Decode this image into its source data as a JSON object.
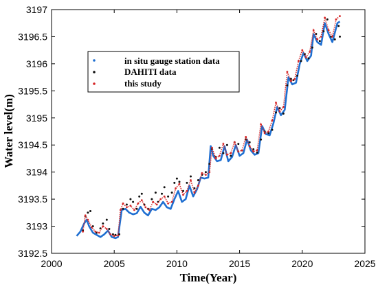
{
  "chart_data": {
    "type": "line",
    "xlabel": "Time(Year)",
    "ylabel": "Water level(m)",
    "xlim": [
      2000,
      2025
    ],
    "ylim": [
      3192.5,
      3197
    ],
    "xticks": [
      2000,
      2005,
      2010,
      2015,
      2020,
      2025
    ],
    "yticks": [
      3192.5,
      3193,
      3193.5,
      3194,
      3194.5,
      3195,
      3195.5,
      3196,
      3196.5,
      3197
    ],
    "xtick_labels": [
      "2000",
      "2005",
      "2010",
      "2015",
      "2020",
      "2025"
    ],
    "ytick_labels": [
      "3192.5",
      "3193",
      "3193.5",
      "3194",
      "3194.5",
      "3195",
      "3195.5",
      "3196",
      "3196.5",
      "3197"
    ],
    "grid": false,
    "legend_position": "upper-left",
    "series": [
      {
        "name": "in situ gauge station data",
        "color": "#1f6fd1",
        "style": "line",
        "points": [
          [
            2002.0,
            3192.82
          ],
          [
            2002.3,
            3192.9
          ],
          [
            2002.6,
            3193.05
          ],
          [
            2002.8,
            3193.12
          ],
          [
            2003.0,
            3193.0
          ],
          [
            2003.3,
            3192.88
          ],
          [
            2003.6,
            3192.84
          ],
          [
            2003.9,
            3192.8
          ],
          [
            2004.2,
            3192.85
          ],
          [
            2004.5,
            3192.92
          ],
          [
            2004.8,
            3192.8
          ],
          [
            2005.1,
            3192.78
          ],
          [
            2005.3,
            3192.8
          ],
          [
            2005.6,
            3193.3
          ],
          [
            2005.9,
            3193.32
          ],
          [
            2006.2,
            3193.25
          ],
          [
            2006.5,
            3193.22
          ],
          [
            2006.8,
            3193.24
          ],
          [
            2007.1,
            3193.36
          ],
          [
            2007.4,
            3193.25
          ],
          [
            2007.7,
            3193.2
          ],
          [
            2008.0,
            3193.32
          ],
          [
            2008.3,
            3193.3
          ],
          [
            2008.6,
            3193.35
          ],
          [
            2008.9,
            3193.45
          ],
          [
            2009.2,
            3193.35
          ],
          [
            2009.5,
            3193.32
          ],
          [
            2009.8,
            3193.5
          ],
          [
            2010.1,
            3193.65
          ],
          [
            2010.4,
            3193.45
          ],
          [
            2010.7,
            3193.5
          ],
          [
            2011.0,
            3193.75
          ],
          [
            2011.3,
            3193.55
          ],
          [
            2011.6,
            3193.68
          ],
          [
            2011.9,
            3193.9
          ],
          [
            2012.2,
            3193.88
          ],
          [
            2012.5,
            3193.9
          ],
          [
            2012.7,
            3194.48
          ],
          [
            2012.9,
            3194.3
          ],
          [
            2013.2,
            3194.2
          ],
          [
            2013.5,
            3194.22
          ],
          [
            2013.8,
            3194.48
          ],
          [
            2014.1,
            3194.2
          ],
          [
            2014.4,
            3194.28
          ],
          [
            2014.7,
            3194.5
          ],
          [
            2015.0,
            3194.3
          ],
          [
            2015.3,
            3194.35
          ],
          [
            2015.6,
            3194.6
          ],
          [
            2015.9,
            3194.4
          ],
          [
            2016.2,
            3194.32
          ],
          [
            2016.5,
            3194.35
          ],
          [
            2016.8,
            3194.85
          ],
          [
            2017.1,
            3194.7
          ],
          [
            2017.4,
            3194.68
          ],
          [
            2017.7,
            3194.9
          ],
          [
            2018.0,
            3195.2
          ],
          [
            2018.3,
            3195.05
          ],
          [
            2018.6,
            3195.15
          ],
          [
            2018.9,
            3195.75
          ],
          [
            2019.2,
            3195.62
          ],
          [
            2019.5,
            3195.65
          ],
          [
            2019.8,
            3196.0
          ],
          [
            2020.1,
            3196.2
          ],
          [
            2020.4,
            3196.05
          ],
          [
            2020.7,
            3196.15
          ],
          [
            2020.9,
            3196.55
          ],
          [
            2021.2,
            3196.4
          ],
          [
            2021.5,
            3196.35
          ],
          [
            2021.8,
            3196.75
          ],
          [
            2022.1,
            3196.55
          ],
          [
            2022.4,
            3196.4
          ],
          [
            2022.8,
            3196.75
          ],
          [
            2023.0,
            3196.78
          ]
        ]
      },
      {
        "name": "DAHITI data",
        "color": "#111111",
        "style": "dots",
        "points": [
          [
            2002.5,
            3192.92
          ],
          [
            2002.7,
            3193.18
          ],
          [
            2002.9,
            3193.25
          ],
          [
            2003.1,
            3193.28
          ],
          [
            2003.3,
            3193.0
          ],
          [
            2003.6,
            3192.88
          ],
          [
            2003.9,
            3192.96
          ],
          [
            2004.1,
            3193.05
          ],
          [
            2004.4,
            3193.12
          ],
          [
            2004.6,
            3192.95
          ],
          [
            2004.9,
            3192.85
          ],
          [
            2005.1,
            3192.84
          ],
          [
            2005.4,
            3192.85
          ],
          [
            2005.7,
            3193.32
          ],
          [
            2006.0,
            3193.4
          ],
          [
            2006.3,
            3193.5
          ],
          [
            2006.5,
            3193.45
          ],
          [
            2006.8,
            3193.32
          ],
          [
            2007.0,
            3193.55
          ],
          [
            2007.2,
            3193.6
          ],
          [
            2007.4,
            3193.4
          ],
          [
            2007.7,
            3193.32
          ],
          [
            2008.0,
            3193.5
          ],
          [
            2008.3,
            3193.62
          ],
          [
            2008.5,
            3193.45
          ],
          [
            2008.8,
            3193.6
          ],
          [
            2009.0,
            3193.72
          ],
          [
            2009.3,
            3193.55
          ],
          [
            2009.6,
            3193.62
          ],
          [
            2009.8,
            3193.8
          ],
          [
            2010.0,
            3193.88
          ],
          [
            2010.2,
            3193.82
          ],
          [
            2010.5,
            3193.65
          ],
          [
            2010.8,
            3193.8
          ],
          [
            2011.1,
            3193.92
          ],
          [
            2011.4,
            3193.7
          ],
          [
            2011.7,
            3193.85
          ],
          [
            2012.0,
            3193.95
          ],
          [
            2012.3,
            3194.0
          ],
          [
            2012.6,
            3194.15
          ],
          [
            2012.8,
            3194.42
          ],
          [
            2013.1,
            3194.28
          ],
          [
            2013.4,
            3194.45
          ],
          [
            2013.7,
            3194.35
          ],
          [
            2014.0,
            3194.5
          ],
          [
            2014.3,
            3194.3
          ],
          [
            2014.6,
            3194.55
          ],
          [
            2014.9,
            3194.52
          ],
          [
            2015.2,
            3194.4
          ],
          [
            2015.5,
            3194.6
          ],
          [
            2015.8,
            3194.55
          ],
          [
            2016.1,
            3194.42
          ],
          [
            2016.4,
            3194.36
          ],
          [
            2016.7,
            3194.6
          ],
          [
            2017.0,
            3194.75
          ],
          [
            2017.3,
            3194.72
          ],
          [
            2017.6,
            3194.78
          ],
          [
            2017.9,
            3195.1
          ],
          [
            2018.2,
            3195.18
          ],
          [
            2018.5,
            3195.08
          ],
          [
            2018.8,
            3195.6
          ],
          [
            2019.1,
            3195.72
          ],
          [
            2019.3,
            3195.7
          ],
          [
            2019.6,
            3195.78
          ],
          [
            2019.9,
            3196.05
          ],
          [
            2020.2,
            3196.18
          ],
          [
            2020.5,
            3196.1
          ],
          [
            2020.8,
            3196.3
          ],
          [
            2021.1,
            3196.55
          ],
          [
            2021.4,
            3196.42
          ],
          [
            2021.7,
            3196.6
          ],
          [
            2022.0,
            3196.82
          ],
          [
            2022.3,
            3196.5
          ],
          [
            2022.6,
            3196.45
          ],
          [
            2022.9,
            3196.7
          ],
          [
            2023.0,
            3196.5
          ]
        ]
      },
      {
        "name": "this study",
        "color": "#d62728",
        "style": "dotted-line",
        "points": [
          [
            2002.5,
            3192.9
          ],
          [
            2002.7,
            3193.2
          ],
          [
            2002.9,
            3193.12
          ],
          [
            2003.2,
            3192.98
          ],
          [
            2003.5,
            3192.9
          ],
          [
            2003.8,
            3192.88
          ],
          [
            2004.1,
            3193.0
          ],
          [
            2004.4,
            3192.95
          ],
          [
            2004.7,
            3192.85
          ],
          [
            2005.0,
            3192.82
          ],
          [
            2005.3,
            3192.83
          ],
          [
            2005.5,
            3193.3
          ],
          [
            2005.7,
            3193.42
          ],
          [
            2006.0,
            3193.35
          ],
          [
            2006.3,
            3193.38
          ],
          [
            2006.6,
            3193.3
          ],
          [
            2006.9,
            3193.42
          ],
          [
            2007.2,
            3193.48
          ],
          [
            2007.5,
            3193.35
          ],
          [
            2007.8,
            3193.3
          ],
          [
            2008.1,
            3193.45
          ],
          [
            2008.4,
            3193.4
          ],
          [
            2008.7,
            3193.5
          ],
          [
            2009.0,
            3193.55
          ],
          [
            2009.3,
            3193.42
          ],
          [
            2009.6,
            3193.45
          ],
          [
            2009.9,
            3193.7
          ],
          [
            2010.2,
            3193.78
          ],
          [
            2010.5,
            3193.58
          ],
          [
            2010.8,
            3193.65
          ],
          [
            2011.1,
            3193.85
          ],
          [
            2011.4,
            3193.62
          ],
          [
            2011.7,
            3193.75
          ],
          [
            2012.0,
            3193.98
          ],
          [
            2012.3,
            3193.95
          ],
          [
            2012.6,
            3194.0
          ],
          [
            2012.8,
            3194.45
          ],
          [
            2013.1,
            3194.25
          ],
          [
            2013.4,
            3194.3
          ],
          [
            2013.7,
            3194.52
          ],
          [
            2014.0,
            3194.32
          ],
          [
            2014.3,
            3194.35
          ],
          [
            2014.6,
            3194.55
          ],
          [
            2014.9,
            3194.38
          ],
          [
            2015.2,
            3194.4
          ],
          [
            2015.5,
            3194.65
          ],
          [
            2015.8,
            3194.48
          ],
          [
            2016.1,
            3194.38
          ],
          [
            2016.4,
            3194.4
          ],
          [
            2016.7,
            3194.88
          ],
          [
            2017.0,
            3194.72
          ],
          [
            2017.3,
            3194.75
          ],
          [
            2017.6,
            3194.95
          ],
          [
            2017.9,
            3195.28
          ],
          [
            2018.2,
            3195.12
          ],
          [
            2018.5,
            3195.2
          ],
          [
            2018.8,
            3195.85
          ],
          [
            2019.1,
            3195.68
          ],
          [
            2019.4,
            3195.72
          ],
          [
            2019.7,
            3196.05
          ],
          [
            2020.0,
            3196.25
          ],
          [
            2020.3,
            3196.12
          ],
          [
            2020.6,
            3196.22
          ],
          [
            2020.9,
            3196.62
          ],
          [
            2021.2,
            3196.45
          ],
          [
            2021.5,
            3196.5
          ],
          [
            2021.8,
            3196.85
          ],
          [
            2022.1,
            3196.62
          ],
          [
            2022.4,
            3196.5
          ],
          [
            2022.7,
            3196.82
          ],
          [
            2023.0,
            3196.88
          ]
        ]
      }
    ]
  }
}
